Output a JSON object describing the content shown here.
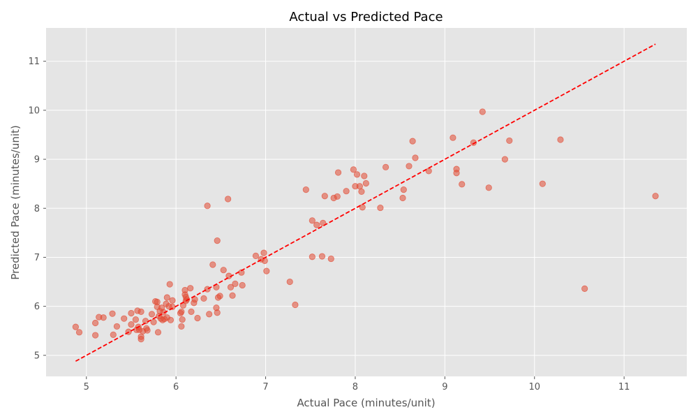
{
  "chart_data": {
    "type": "scatter",
    "title": "Actual vs Predicted Pace",
    "xlabel": "Actual Pace (minutes/unit)",
    "ylabel": "Predicted Pace (minutes/unit)",
    "xlim": [
      4.55,
      11.7
    ],
    "ylim": [
      4.57,
      11.68
    ],
    "xticks": [
      5,
      6,
      7,
      8,
      9,
      10,
      11
    ],
    "yticks": [
      5,
      6,
      7,
      8,
      9,
      10,
      11
    ],
    "grid": true,
    "point_color": "#E24A33",
    "line_color": "#FF0000",
    "plot_background": "#E5E5E5",
    "grid_color": "#FFFFFF",
    "reference_line": {
      "style": "dashed",
      "x": [
        4.88,
        11.35
      ],
      "y": [
        4.88,
        11.35
      ]
    },
    "points": [
      [
        4.88,
        5.58
      ],
      [
        4.92,
        5.47
      ],
      [
        5.1,
        5.66
      ],
      [
        5.1,
        5.41
      ],
      [
        5.14,
        5.78
      ],
      [
        5.19,
        5.77
      ],
      [
        5.29,
        5.85
      ],
      [
        5.3,
        5.42
      ],
      [
        5.34,
        5.59
      ],
      [
        5.42,
        5.75
      ],
      [
        5.47,
        5.48
      ],
      [
        5.5,
        5.63
      ],
      [
        5.5,
        5.86
      ],
      [
        5.55,
        5.73
      ],
      [
        5.56,
        5.52
      ],
      [
        5.57,
        5.91
      ],
      [
        5.58,
        5.58
      ],
      [
        5.59,
        5.52
      ],
      [
        5.61,
        5.89
      ],
      [
        5.61,
        5.38
      ],
      [
        5.61,
        5.33
      ],
      [
        5.63,
        5.49
      ],
      [
        5.66,
        5.7
      ],
      [
        5.67,
        5.55
      ],
      [
        5.68,
        5.51
      ],
      [
        5.73,
        5.84
      ],
      [
        5.75,
        5.68
      ],
      [
        5.77,
        6.1
      ],
      [
        5.79,
        5.99
      ],
      [
        5.79,
        6.09
      ],
      [
        5.8,
        5.47
      ],
      [
        5.81,
        5.8
      ],
      [
        5.82,
        5.9
      ],
      [
        5.83,
        5.75
      ],
      [
        5.84,
        5.97
      ],
      [
        5.85,
        5.72
      ],
      [
        5.86,
        5.88
      ],
      [
        5.87,
        5.74
      ],
      [
        5.89,
        6.05
      ],
      [
        5.9,
        5.77
      ],
      [
        5.9,
        6.18
      ],
      [
        5.92,
        6.0
      ],
      [
        5.93,
        6.45
      ],
      [
        5.94,
        5.72
      ],
      [
        5.96,
        5.99
      ],
      [
        5.96,
        6.12
      ],
      [
        6.05,
        5.86
      ],
      [
        6.06,
        5.89
      ],
      [
        6.06,
        5.59
      ],
      [
        6.07,
        5.73
      ],
      [
        6.08,
        6.02
      ],
      [
        6.1,
        6.33
      ],
      [
        6.1,
        6.24
      ],
      [
        6.11,
        6.19
      ],
      [
        6.11,
        6.11
      ],
      [
        6.12,
        6.14
      ],
      [
        6.16,
        6.37
      ],
      [
        6.17,
        5.89
      ],
      [
        6.2,
        6.07
      ],
      [
        6.21,
        6.14
      ],
      [
        6.24,
        5.76
      ],
      [
        6.31,
        6.16
      ],
      [
        6.35,
        6.35
      ],
      [
        6.35,
        8.05
      ],
      [
        6.37,
        5.84
      ],
      [
        6.41,
        6.85
      ],
      [
        6.45,
        6.39
      ],
      [
        6.45,
        5.97
      ],
      [
        6.46,
        7.34
      ],
      [
        6.46,
        5.87
      ],
      [
        6.47,
        6.18
      ],
      [
        6.49,
        6.21
      ],
      [
        6.53,
        6.74
      ],
      [
        6.58,
        8.19
      ],
      [
        6.59,
        6.62
      ],
      [
        6.61,
        6.39
      ],
      [
        6.63,
        6.22
      ],
      [
        6.66,
        6.46
      ],
      [
        6.73,
        6.69
      ],
      [
        6.74,
        6.43
      ],
      [
        6.89,
        7.03
      ],
      [
        6.95,
        6.96
      ],
      [
        6.98,
        7.09
      ],
      [
        6.99,
        6.93
      ],
      [
        7.01,
        6.72
      ],
      [
        7.27,
        6.5
      ],
      [
        7.33,
        6.03
      ],
      [
        7.45,
        8.38
      ],
      [
        7.52,
        7.75
      ],
      [
        7.52,
        7.01
      ],
      [
        7.57,
        7.66
      ],
      [
        7.63,
        7.02
      ],
      [
        7.64,
        7.7
      ],
      [
        7.66,
        8.25
      ],
      [
        7.73,
        6.97
      ],
      [
        7.76,
        8.21
      ],
      [
        7.8,
        8.24
      ],
      [
        7.81,
        8.73
      ],
      [
        7.9,
        8.35
      ],
      [
        7.98,
        8.79
      ],
      [
        8.0,
        8.45
      ],
      [
        8.02,
        8.69
      ],
      [
        8.05,
        8.45
      ],
      [
        8.07,
        8.34
      ],
      [
        8.08,
        8.02
      ],
      [
        8.1,
        8.66
      ],
      [
        8.12,
        8.51
      ],
      [
        8.28,
        8.01
      ],
      [
        8.34,
        8.84
      ],
      [
        8.53,
        8.21
      ],
      [
        8.54,
        8.38
      ],
      [
        8.6,
        8.86
      ],
      [
        8.64,
        9.37
      ],
      [
        8.67,
        9.03
      ],
      [
        8.82,
        8.76
      ],
      [
        9.09,
        9.44
      ],
      [
        9.13,
        8.8
      ],
      [
        9.13,
        8.72
      ],
      [
        9.19,
        8.49
      ],
      [
        9.32,
        9.34
      ],
      [
        9.42,
        9.97
      ],
      [
        9.49,
        8.42
      ],
      [
        9.67,
        9.0
      ],
      [
        9.72,
        9.38
      ],
      [
        10.09,
        8.5
      ],
      [
        10.29,
        9.4
      ],
      [
        10.56,
        6.36
      ],
      [
        11.35,
        8.25
      ]
    ]
  }
}
